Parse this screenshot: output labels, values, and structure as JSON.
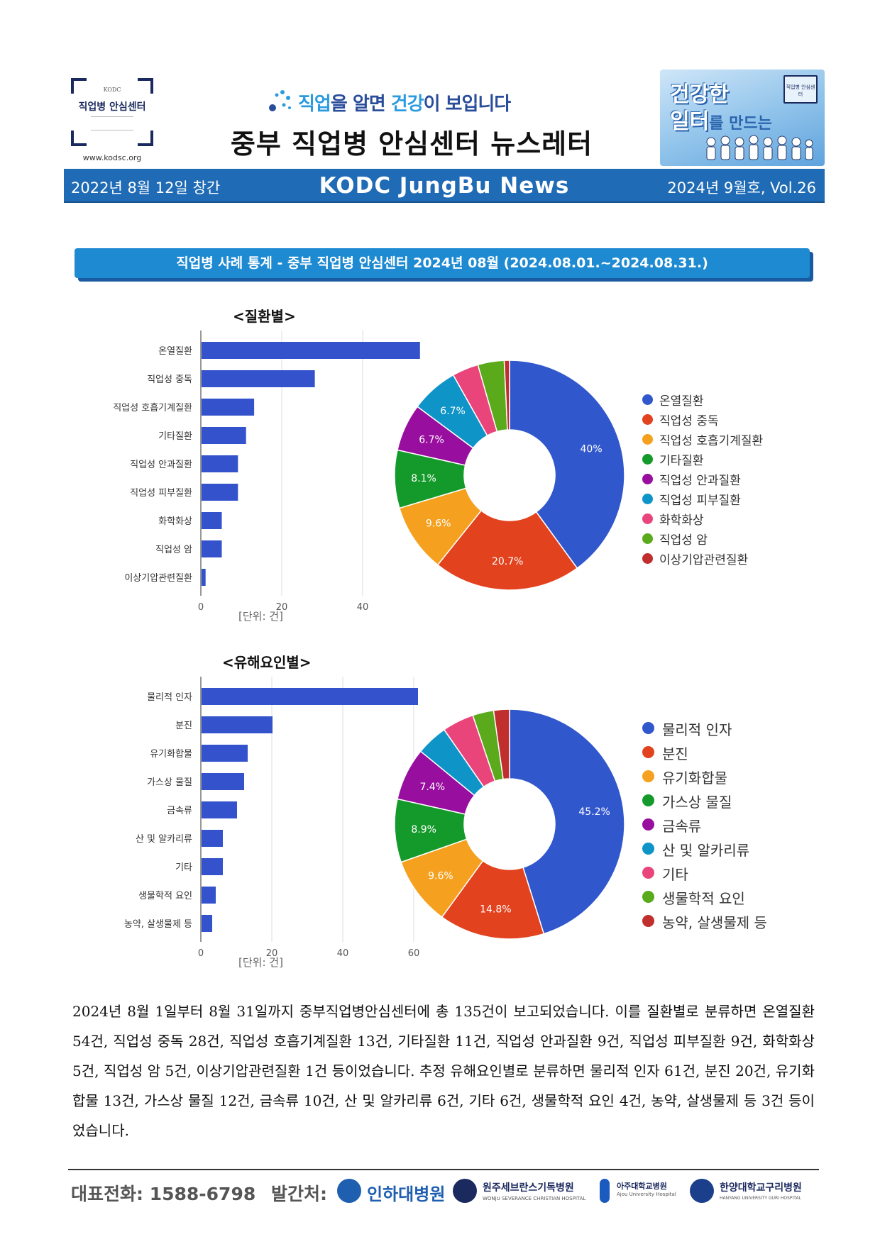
{
  "header": {
    "logo_small": "KODC",
    "logo_name": "직업병 안심센터",
    "logo_url": "www.kodsc.org",
    "slogan_a": "직업",
    "slogan_b": "을 알면 ",
    "slogan_c": "건강",
    "slogan_d": "이 보입니다",
    "newsletter_title": "중부 직업병 안심센터 뉴스레터",
    "badge_line1": "건강한",
    "badge_line2": "일터",
    "badge_line2_small": "를 만드는",
    "badge_mini": "직업병 안심센터"
  },
  "bluebar": {
    "left": "2022년 8월 12일 창간",
    "center": "KODC JungBu News",
    "right": "2024년 9월호, Vol.26"
  },
  "section_title": "직업병 사례 통계 - 중부 직업병 안심센터   2024년 08월 (2024.08.01.~2024.08.31.)",
  "chart_data": [
    {
      "type": "bar",
      "title": "<질환별>",
      "orientation": "horizontal",
      "categories": [
        "온열질환",
        "직업성 중독",
        "직업성 호흡기계질환",
        "기타질환",
        "직업성 안과질환",
        "직업성 피부질환",
        "화학화상",
        "직업성 암",
        "이상기압관련질환"
      ],
      "values": [
        54,
        28,
        13,
        11,
        9,
        9,
        5,
        5,
        1
      ],
      "xlim": [
        0,
        54
      ],
      "xticks": [
        0,
        20,
        40
      ],
      "unit_label": "[단위: 건]",
      "bar_color": "#3352cc",
      "grid": true
    },
    {
      "type": "pie",
      "donut": true,
      "labels": [
        "온열질환",
        "직업성 중독",
        "직업성 호흡기계질환",
        "기타질환",
        "직업성 안과질환",
        "직업성 피부질환",
        "화학화상",
        "직업성 암",
        "이상기압관련질환"
      ],
      "values": [
        54,
        28,
        13,
        11,
        9,
        9,
        5,
        5,
        1
      ],
      "slice_labels": [
        "40%",
        "20.7%",
        "9.6%",
        "8.1%",
        "6.7%",
        "6.7%",
        "",
        "",
        ""
      ],
      "colors": [
        "#3157cc",
        "#e3421e",
        "#f5a11f",
        "#149a2a",
        "#980e9e",
        "#0f94c8",
        "#e9457b",
        "#5aaa1c",
        "#c02e2e"
      ],
      "legend_position": "right"
    },
    {
      "type": "bar",
      "title": "<유해요인별>",
      "orientation": "horizontal",
      "categories": [
        "물리적 인자",
        "분진",
        "유기화합물",
        "가스상 물질",
        "금속류",
        "산 및 알카리류",
        "기타",
        "생물학적 요인",
        "농약, 살생물제 등"
      ],
      "values": [
        61,
        20,
        13,
        12,
        10,
        6,
        6,
        4,
        3
      ],
      "xlim": [
        0,
        61
      ],
      "xticks": [
        0,
        20,
        40,
        60
      ],
      "unit_label": "[단위: 건]",
      "bar_color": "#3352cc",
      "grid": true
    },
    {
      "type": "pie",
      "donut": true,
      "labels": [
        "물리적 인자",
        "분진",
        "유기화합물",
        "가스상 물질",
        "금속류",
        "산 및 알카리류",
        "기타",
        "생물학적 요인",
        "농약, 살생물제 등"
      ],
      "values": [
        61,
        20,
        13,
        12,
        10,
        6,
        6,
        4,
        3
      ],
      "slice_labels": [
        "45.2%",
        "14.8%",
        "9.6%",
        "8.9%",
        "7.4%",
        "",
        "",
        "",
        ""
      ],
      "colors": [
        "#3157cc",
        "#e3421e",
        "#f5a11f",
        "#149a2a",
        "#980e9e",
        "#0f94c8",
        "#e9457b",
        "#5aaa1c",
        "#c02e2e"
      ],
      "legend_position": "right"
    }
  ],
  "paragraph": "2024년 8월 1일부터 8월 31일까지 중부직업병안심센터에 총 135건이 보고되었습니다. 이를 질환별로 분류하면 온열질환 54건, 직업성 중독 28건, 직업성 호흡기계질환 13건, 기타질환 11건, 직업성 안과질환 9건, 직업성 피부질환 9건, 화학화상 5건, 직업성 암 5건, 이상기압관련질환 1건 등이었습니다.  추정 유해요인별로 분류하면 물리적 인자 61건, 분진 20건, 유기화합물 13건, 가스상 물질 12건, 금속류 10건, 산 및 알카리류 6건, 기타 6건, 생물학적 요인 4건, 농약, 살생물제 등 3건 등이었습니다.",
  "footer": {
    "phone": "대표전화: 1588-6798",
    "publisher_label": "발간처:",
    "hospitals": [
      {
        "name": "인하대병원",
        "sub": "",
        "color": "#1f5fb0"
      },
      {
        "name": "원주세브란스기독병원",
        "sub": "WONJU SEVERANCE CHRISTIAN HOSPITAL",
        "color": "#1b2a5e"
      },
      {
        "name": "아주대학교병원",
        "sub": "Ajou University Hospital",
        "color": "#1b2a5e"
      },
      {
        "name": "한양대학교구리병원",
        "sub": "HANYANG UNIVERSITY GURI HOSPITAL",
        "color": "#1b2a5e"
      }
    ]
  }
}
